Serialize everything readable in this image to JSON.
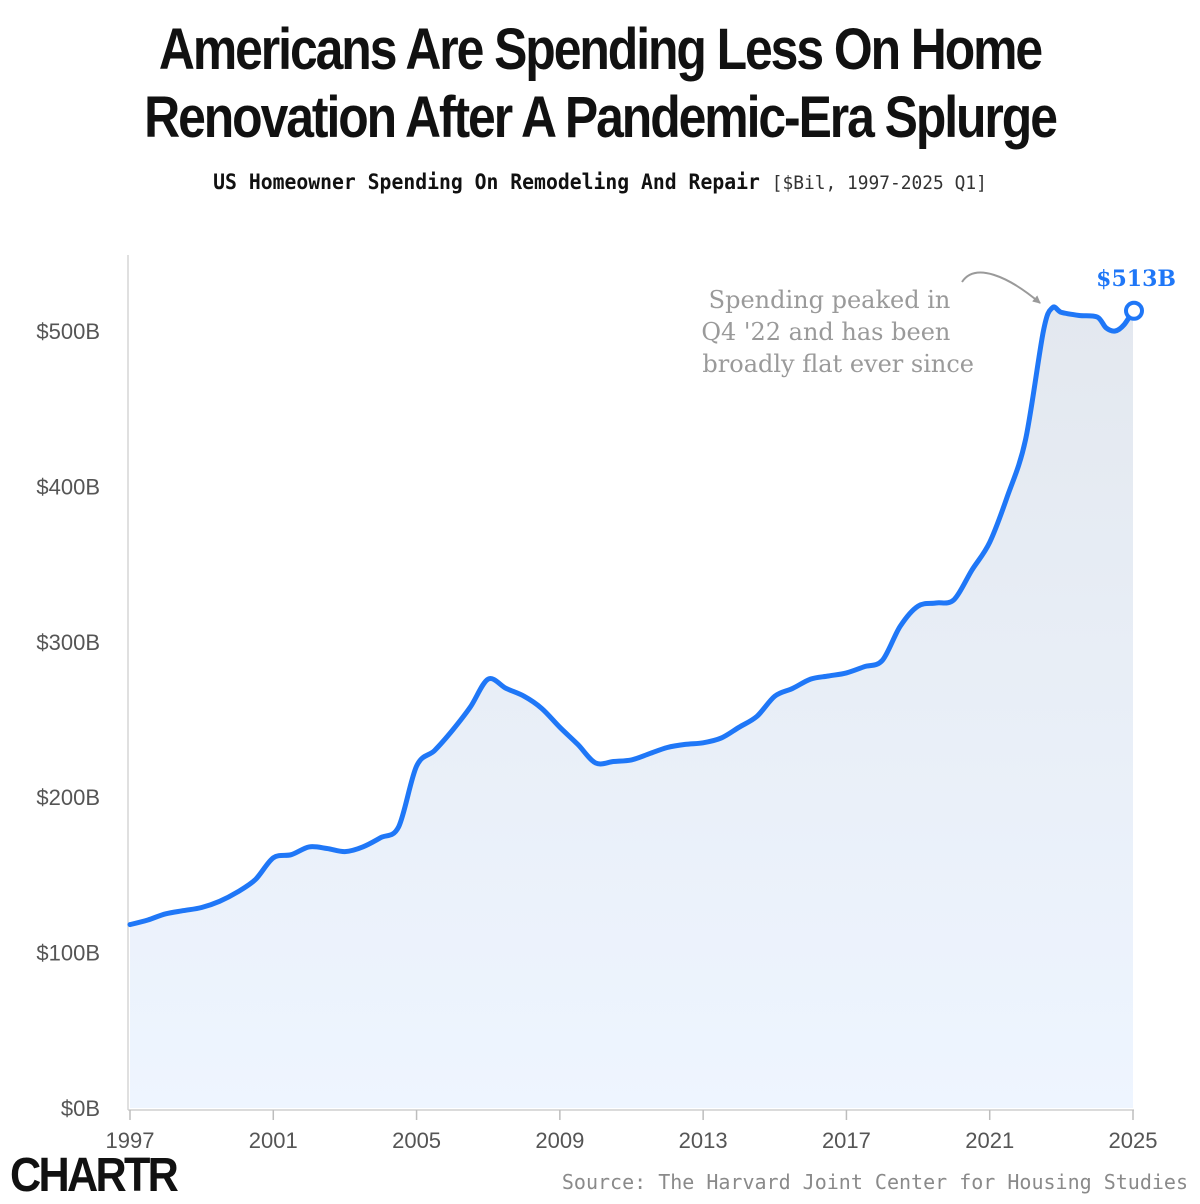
{
  "header": {
    "title_line1": "Americans Are Spending Less On Home",
    "title_line2": "Renovation After A Pandemic-Era Splurge",
    "subtitle": "US Homeowner Spending On Remodeling And Repair",
    "subtitle_units": "[$Bil, 1997-2025 Q1]"
  },
  "annotation": {
    "line1": "Spending peaked in",
    "line2": "Q4 '22 and has been",
    "line3": "broadly flat ever since"
  },
  "end_label": "$513B",
  "footer": {
    "logo": "CHARTR",
    "source": "Source: The Harvard Joint Center for Housing Studies"
  },
  "colors": {
    "line": "#1f77f7",
    "fill_top": "#e3e8ef",
    "fill_bottom": "#eef5ff",
    "annotation": "#9a9a9a",
    "axis_text": "#555555"
  },
  "chart_data": {
    "type": "area",
    "title": "US Homeowner Spending On Remodeling And Repair",
    "ylabel": "$Bil",
    "xlim": [
      1997,
      2025
    ],
    "ylim": [
      0,
      550
    ],
    "y_ticks": [
      0,
      100,
      200,
      300,
      400,
      500
    ],
    "y_tick_labels": [
      "$0B",
      "$100B",
      "$200B",
      "$300B",
      "$400B",
      "$500B"
    ],
    "x_ticks": [
      1997,
      2001,
      2005,
      2009,
      2013,
      2017,
      2021,
      2025
    ],
    "x_tick_labels": [
      "1997",
      "2001",
      "2005",
      "2009",
      "2013",
      "2017",
      "2021",
      "2025"
    ],
    "series": [
      {
        "name": "Homeowner spending on remodeling and repair ($Bil)",
        "x": [
          1997,
          1997.5,
          1998,
          1998.5,
          1999,
          1999.5,
          2000,
          2000.5,
          2001,
          2001.5,
          2002,
          2002.5,
          2003,
          2003.5,
          2004,
          2004.5,
          2005,
          2005.5,
          2006,
          2006.5,
          2007,
          2007.5,
          2008,
          2008.5,
          2009,
          2009.5,
          2010,
          2010.5,
          2011,
          2011.5,
          2012,
          2012.5,
          2013,
          2013.5,
          2014,
          2014.5,
          2015,
          2015.5,
          2016,
          2016.5,
          2017,
          2017.5,
          2018,
          2018.5,
          2019,
          2019.5,
          2020,
          2020.5,
          2021,
          2021.5,
          2022,
          2022.5,
          2022.75,
          2023,
          2023.5,
          2024,
          2024.25,
          2024.5,
          2024.75,
          2025
        ],
        "values": [
          118,
          121,
          125,
          127,
          129,
          133,
          139,
          147,
          161,
          163,
          168,
          167,
          165,
          168,
          174,
          181,
          220,
          230,
          243,
          258,
          276,
          270,
          265,
          257,
          245,
          234,
          222,
          223,
          224,
          228,
          232,
          234,
          235,
          238,
          245,
          252,
          265,
          270,
          276,
          278,
          280,
          284,
          288,
          310,
          323,
          325,
          327,
          346,
          364,
          394,
          430,
          500,
          515,
          512,
          510,
          509,
          502,
          500,
          504,
          513
        ]
      }
    ],
    "peak": {
      "x": 2022.75,
      "value": 515
    },
    "latest": {
      "x": 2025,
      "value": 513,
      "label": "$513B"
    },
    "annotation_text": "Spending peaked in Q4 '22 and has been broadly flat ever since"
  }
}
